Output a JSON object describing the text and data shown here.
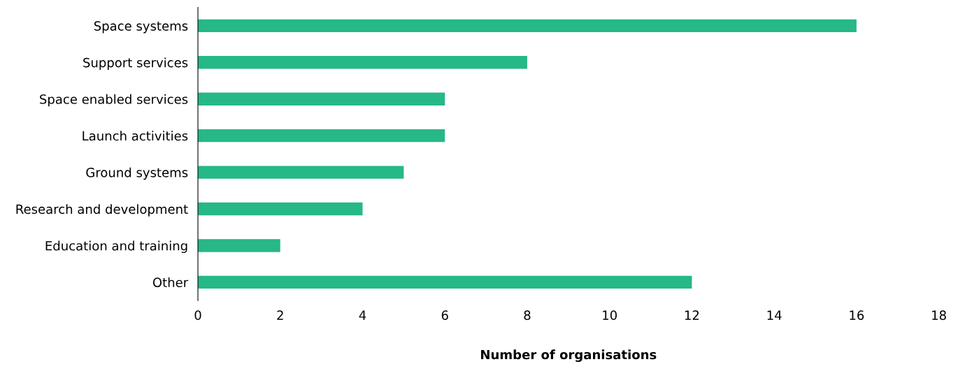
{
  "chart_data": {
    "type": "bar",
    "orientation": "horizontal",
    "xlabel": "Number of organisations",
    "categories": [
      "Space systems",
      "Support services",
      "Space enabled services",
      "Launch activities",
      "Ground systems",
      "Research and development",
      "Education and training",
      "Other"
    ],
    "values": [
      16,
      8,
      6,
      6,
      5,
      4,
      2,
      12
    ],
    "color": "#26b887",
    "xlim": [
      0,
      18
    ],
    "xticks": [
      0,
      2,
      4,
      6,
      8,
      10,
      12,
      14,
      16,
      18
    ],
    "grid": false,
    "legend": false
  }
}
